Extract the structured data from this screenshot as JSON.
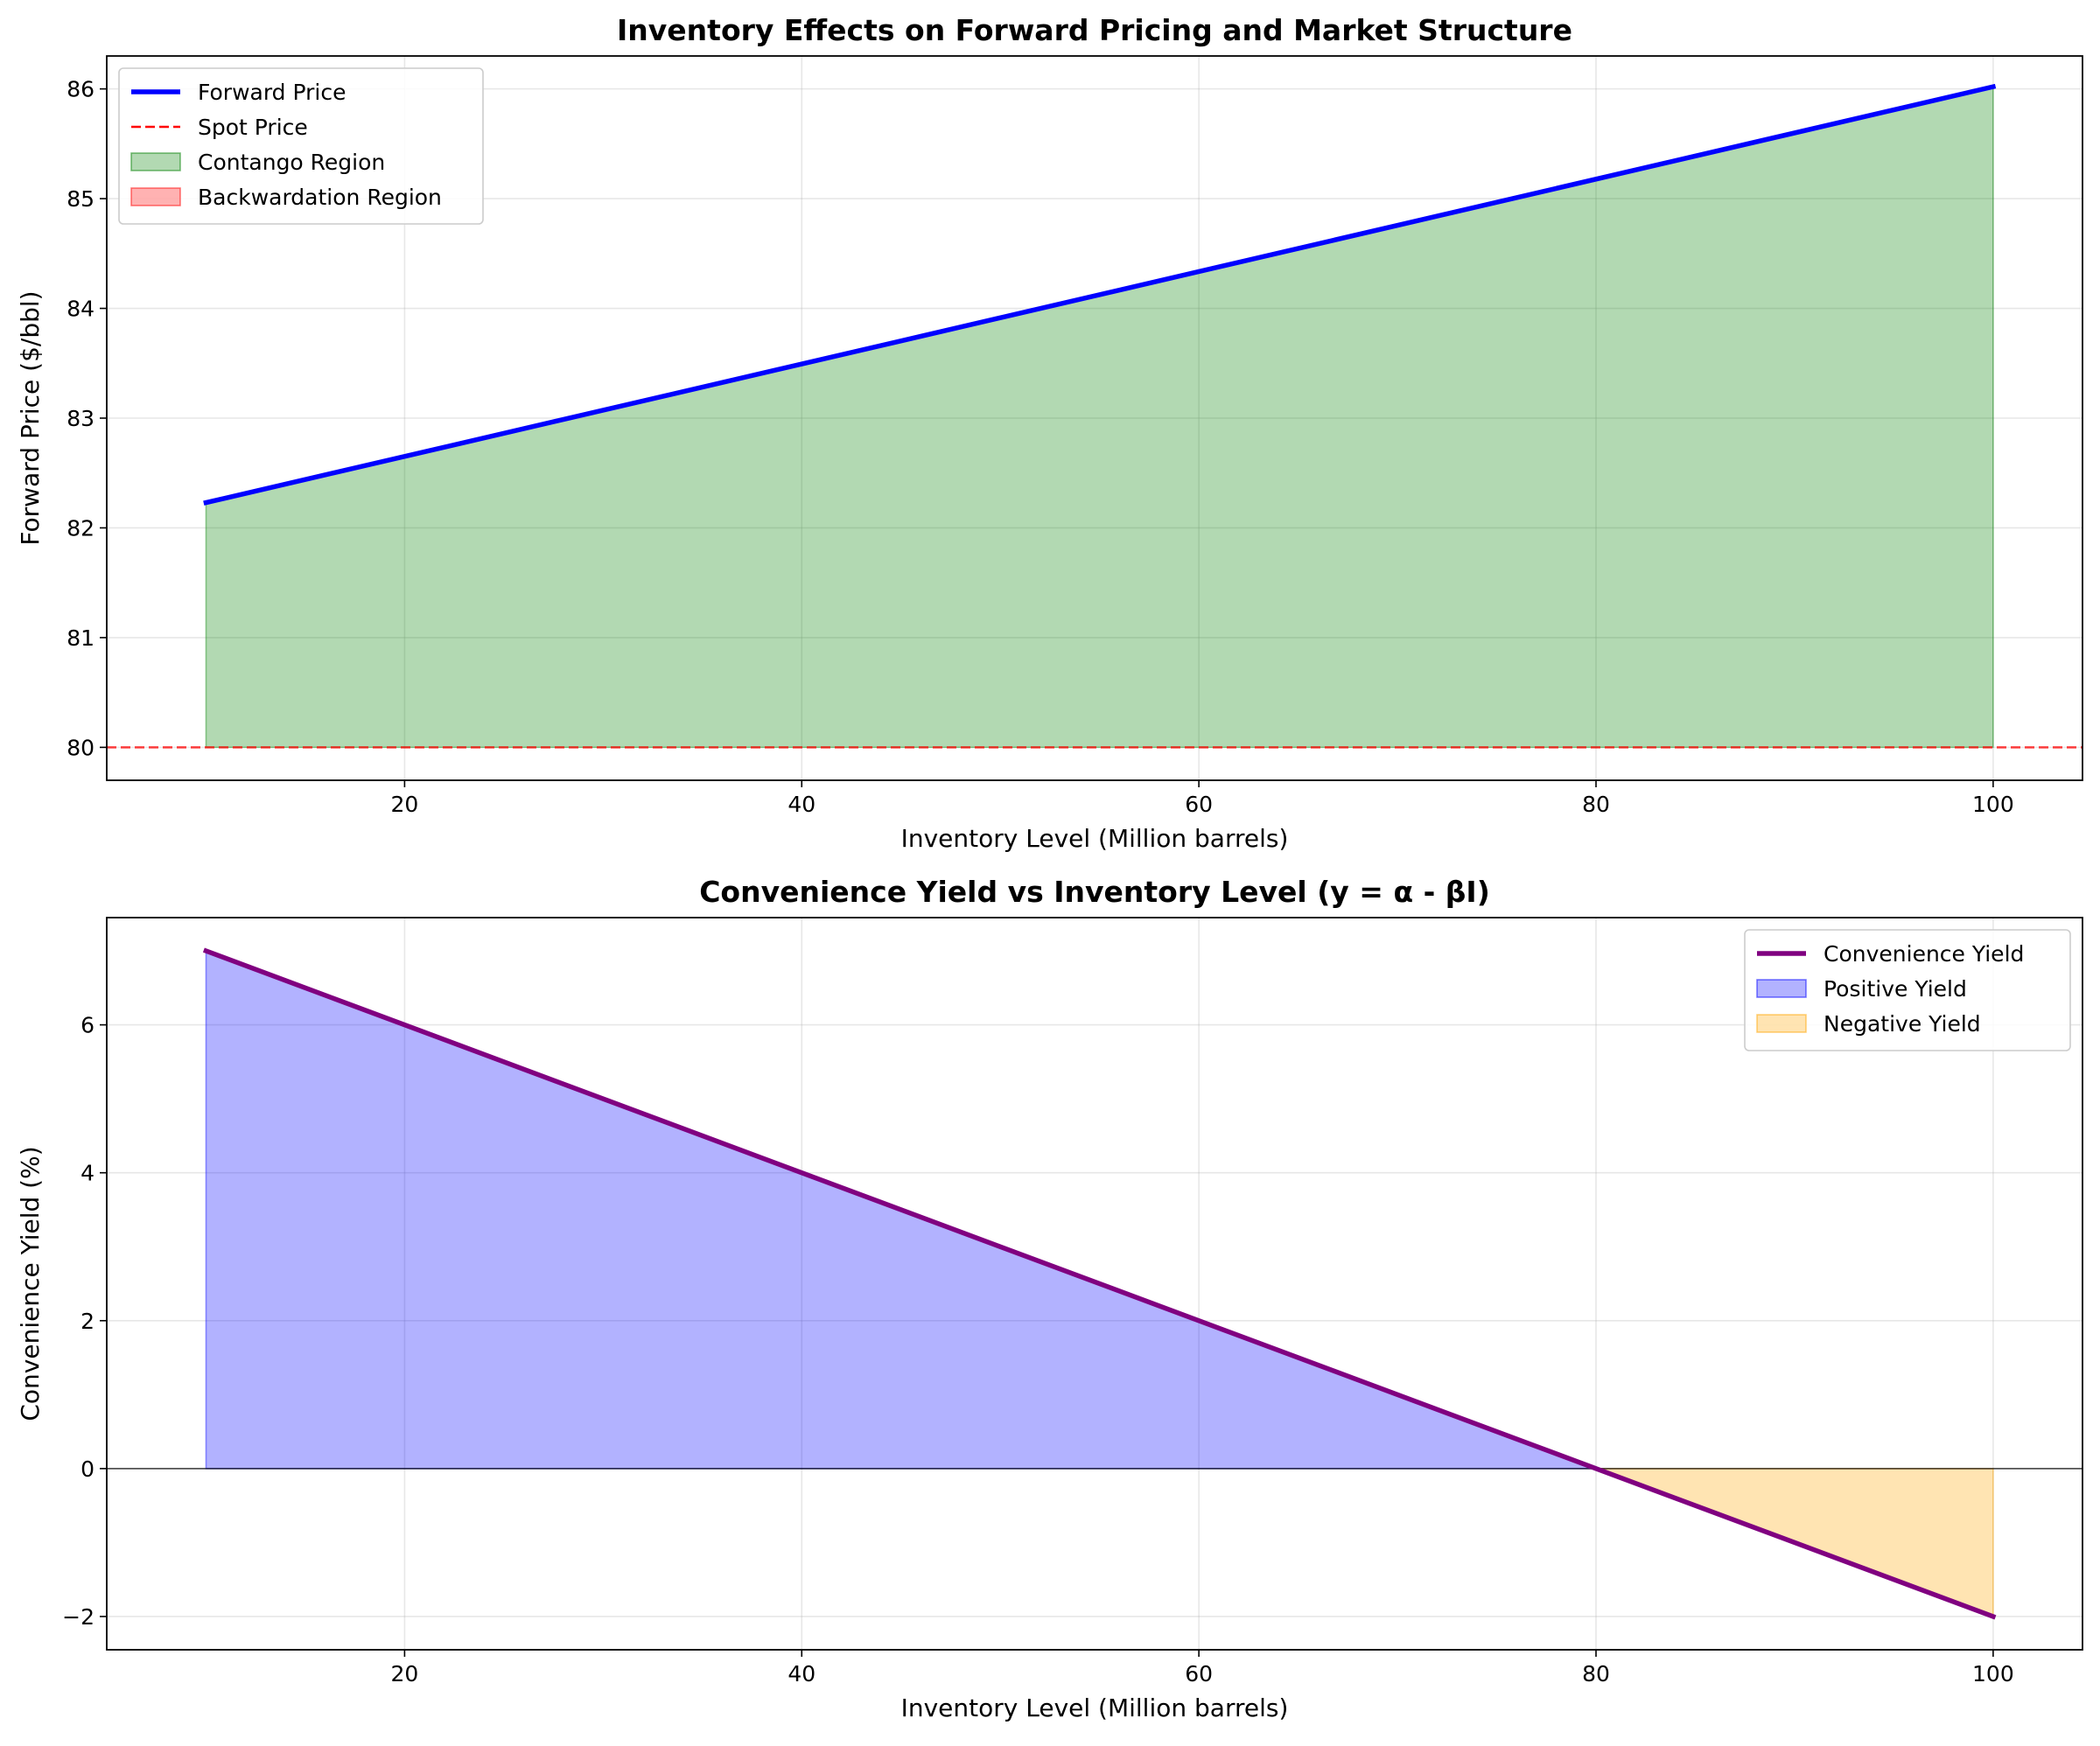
{
  "chart_data": [
    {
      "type": "line",
      "title": "Inventory Effects on Forward Pricing and Market Structure",
      "xlabel": "Inventory Level (Million barrels)",
      "ylabel": "Forward Price ($/bbl)",
      "xlim": [
        5,
        104.5
      ],
      "ylim": [
        79.7,
        86.3
      ],
      "xticks": [
        20,
        40,
        60,
        80,
        100
      ],
      "yticks": [
        80,
        81,
        82,
        83,
        84,
        85,
        86
      ],
      "grid": true,
      "legend_position": "upper-left",
      "series": [
        {
          "name": "Forward Price",
          "x": [
            10,
            100
          ],
          "y": [
            82.23,
            86.02
          ],
          "color": "#0000ff",
          "style": "solid"
        },
        {
          "name": "Spot Price",
          "hline": 80,
          "color": "#ff0000",
          "style": "dashed"
        }
      ],
      "fills": [
        {
          "name": "Contango Region",
          "color": "#008000",
          "between": [
            "Forward Price",
            "Spot Price"
          ],
          "where": "forward > spot"
        },
        {
          "name": "Backwardation Region",
          "color": "#ff0000",
          "between": [
            "Forward Price",
            "Spot Price"
          ],
          "where": "forward < spot"
        }
      ],
      "legend": [
        "Forward Price",
        "Spot Price",
        "Contango Region",
        "Backwardation Region"
      ]
    },
    {
      "type": "line",
      "title": "Convenience Yield vs Inventory Level (y = α - βI)",
      "xlabel": "Inventory Level (Million barrels)",
      "ylabel": "Convenience Yield (%)",
      "xlim": [
        5,
        104.5
      ],
      "ylim": [
        -2.45,
        7.45
      ],
      "xticks": [
        20,
        40,
        60,
        80,
        100
      ],
      "yticks": [
        -2,
        0,
        2,
        4,
        6
      ],
      "ytick_labels": [
        "−2",
        "0",
        "2",
        "4",
        "6"
      ],
      "grid": true,
      "legend_position": "upper-right",
      "baseline": 0,
      "series": [
        {
          "name": "Convenience Yield",
          "x": [
            10,
            100
          ],
          "y": [
            7.0,
            -2.0
          ],
          "color": "#800080",
          "style": "solid"
        }
      ],
      "fills": [
        {
          "name": "Positive Yield",
          "color": "#0000ff",
          "where": "yield > 0"
        },
        {
          "name": "Negative Yield",
          "color": "#ffa500",
          "where": "yield < 0"
        }
      ],
      "legend": [
        "Convenience Yield",
        "Positive Yield",
        "Negative Yield"
      ]
    }
  ]
}
